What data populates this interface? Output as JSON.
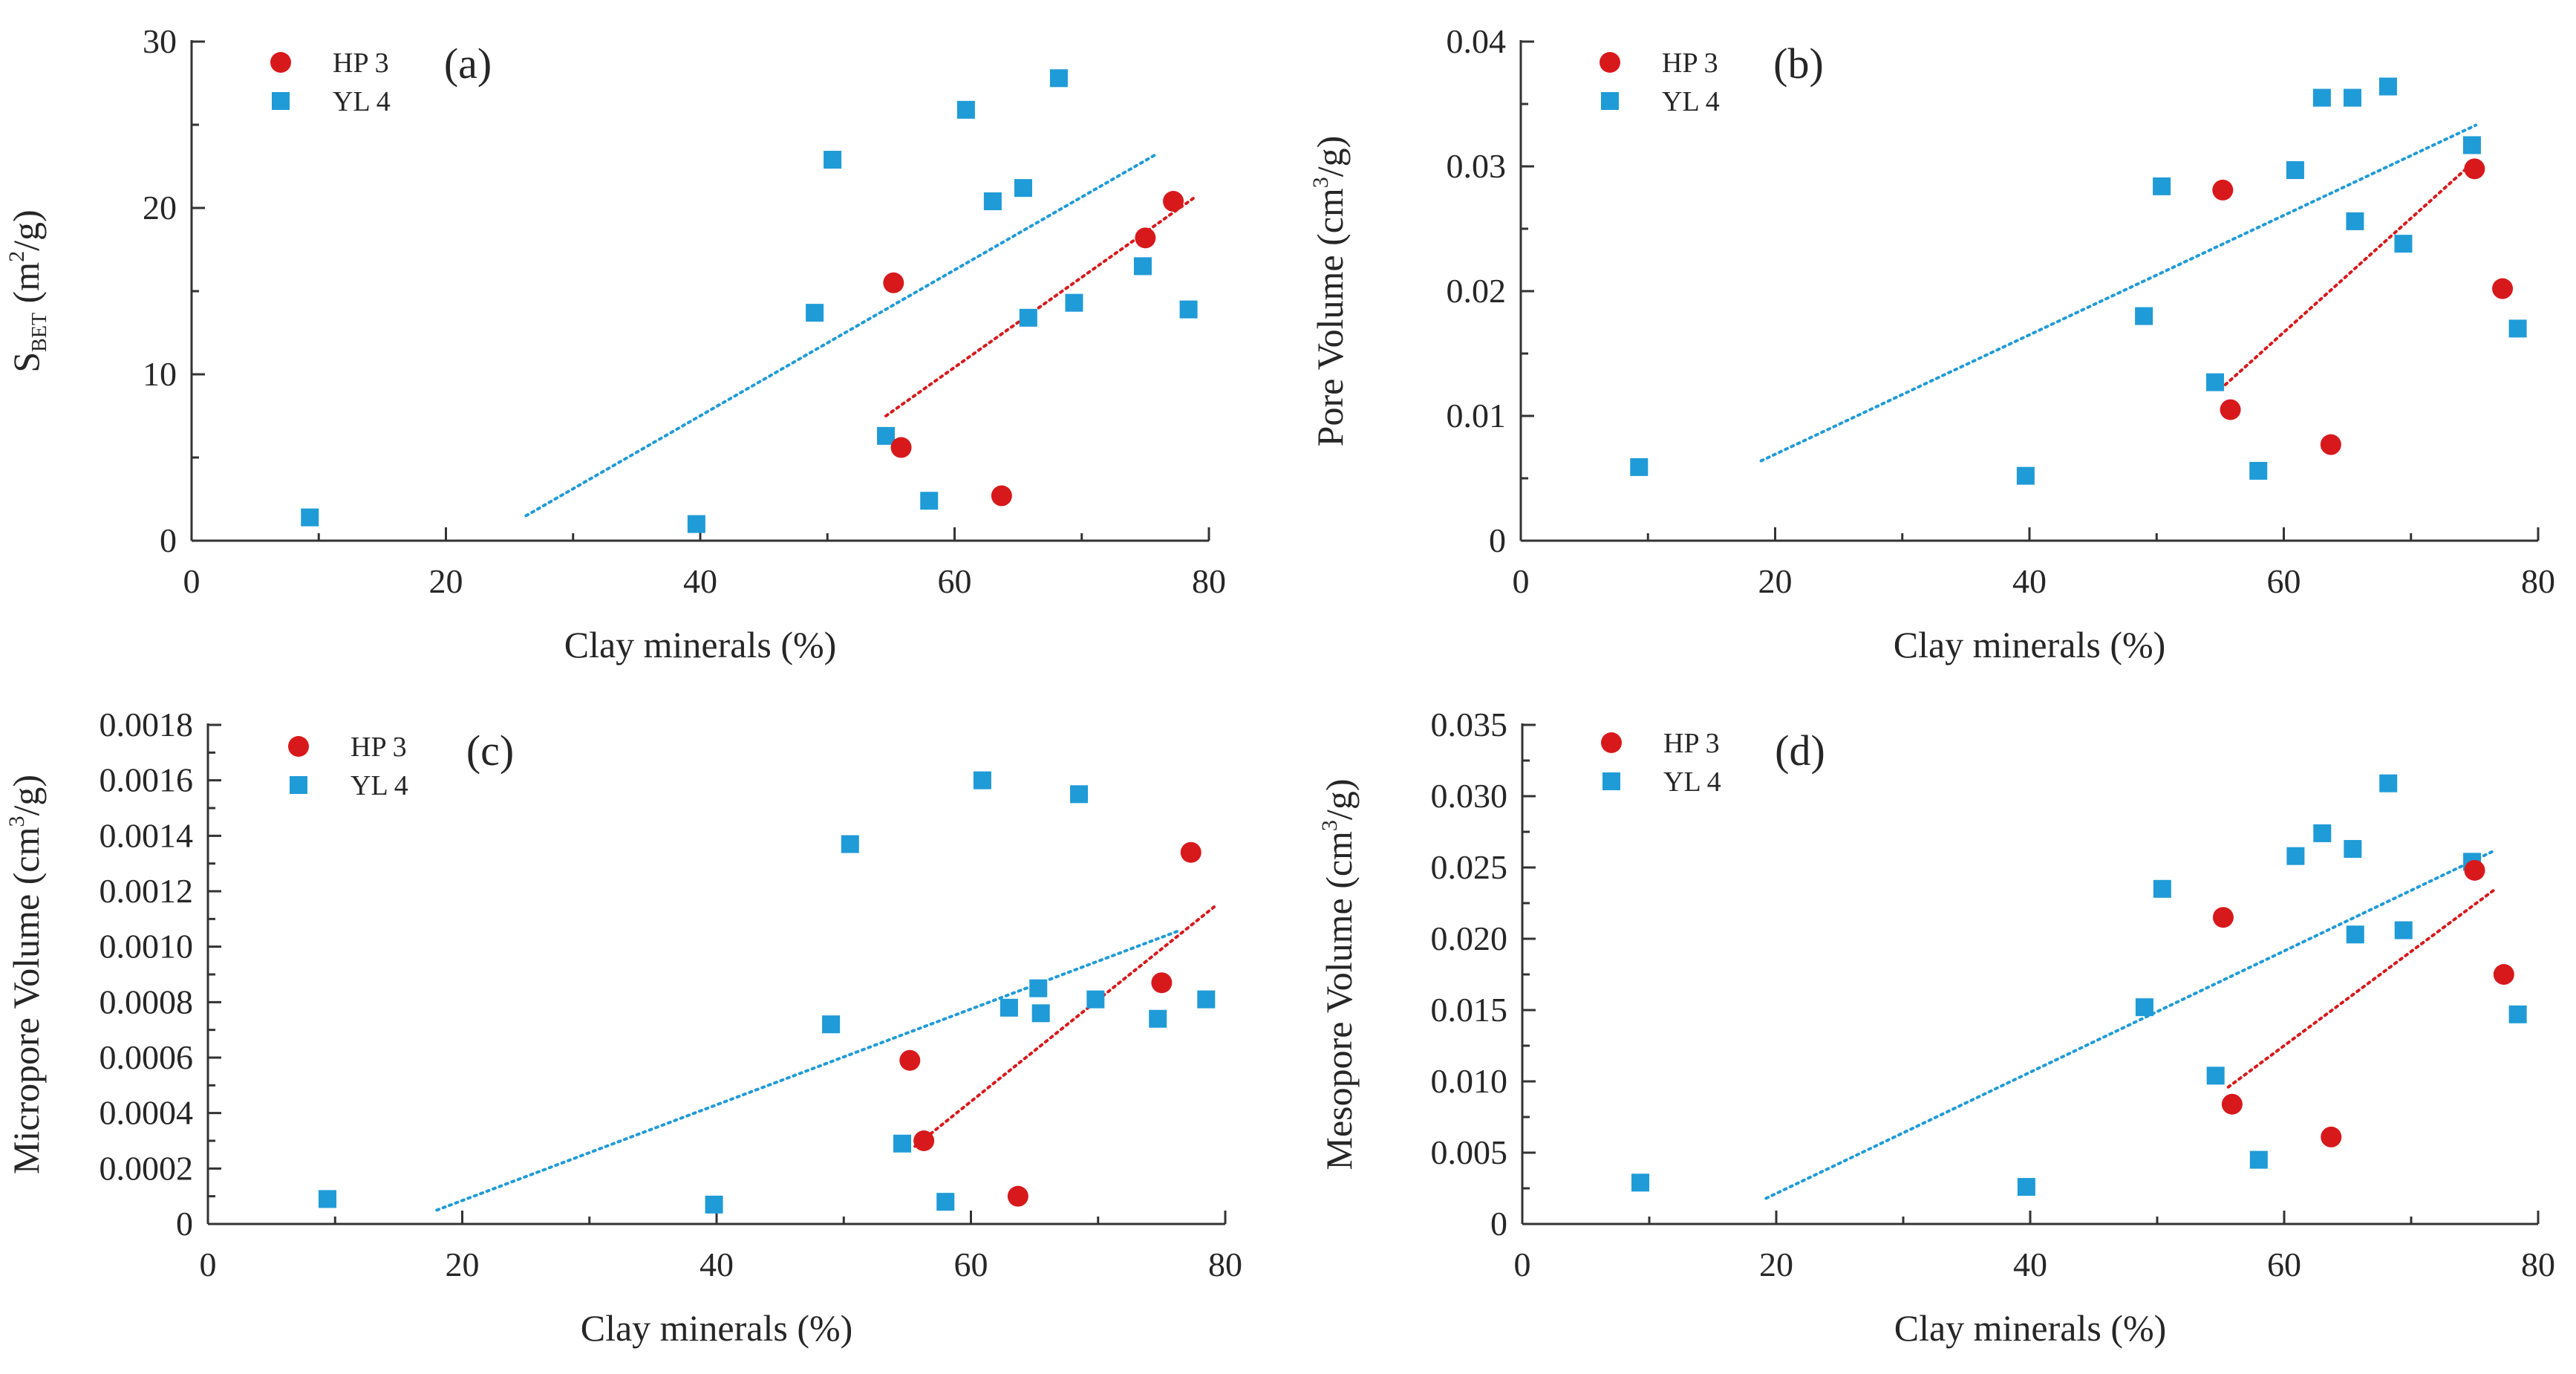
{
  "colors": {
    "axis": "#333333",
    "text": "#262626",
    "hp3": "#d7191c",
    "yl4": "#1f9bd7"
  },
  "chart_data": [
    {
      "type": "scatter",
      "panel_label": "(a)",
      "xlabel": "Clay minerals (%)",
      "ylabel": "S",
      "ylabel_sub": "BET",
      "ylabel_rest": " (m",
      "ylabel_sup": "2",
      "ylabel_end": "/g)",
      "xlim": [
        0,
        80
      ],
      "ylim": [
        0,
        30
      ],
      "x_ticks": [
        0,
        20,
        40,
        60,
        80
      ],
      "x_tick_labels": [
        "0",
        "20",
        "40",
        "60",
        "80"
      ],
      "y_ticks": [
        0,
        10,
        20,
        30
      ],
      "y_tick_labels": [
        "0",
        "10",
        "20",
        "30"
      ],
      "legend": [
        "HP 3",
        "YL 4"
      ],
      "series": [
        {
          "name": "HP 3",
          "marker": "circle",
          "color_key": "hp3",
          "x": [
            55.2,
            55.8,
            63.7,
            75.0,
            77.2
          ],
          "y": [
            15.5,
            5.6,
            2.7,
            18.2,
            20.4
          ],
          "trend": {
            "x1": 54.6,
            "y1": 7.5,
            "x2": 79.0,
            "y2": 20.7
          }
        },
        {
          "name": "YL 4",
          "marker": "square",
          "color_key": "yl4",
          "x": [
            9.3,
            39.7,
            49.0,
            50.4,
            54.6,
            58.0,
            60.9,
            63.0,
            65.4,
            65.8,
            68.2,
            69.4,
            74.8,
            78.4
          ],
          "y": [
            1.4,
            1.0,
            13.7,
            22.9,
            6.3,
            2.4,
            25.9,
            20.4,
            21.2,
            13.4,
            27.8,
            14.3,
            16.5,
            13.9
          ],
          "trend": {
            "x1": 26.3,
            "y1": 1.5,
            "x2": 75.8,
            "y2": 23.2
          }
        }
      ]
    },
    {
      "type": "scatter",
      "panel_label": "(b)",
      "xlabel": "Clay minerals (%)",
      "ylabel": "Pore Volume (cm",
      "ylabel_sup": "3",
      "ylabel_end": "/g)",
      "xlim": [
        0,
        80
      ],
      "ylim": [
        0,
        0.04
      ],
      "x_ticks": [
        0,
        20,
        40,
        60,
        80
      ],
      "x_tick_labels": [
        "0",
        "20",
        "40",
        "60",
        "80"
      ],
      "y_ticks": [
        0,
        0.01,
        0.02,
        0.03,
        0.04
      ],
      "y_tick_labels": [
        "0",
        "0.01",
        "0.02",
        "0.03",
        "0.04"
      ],
      "legend": [
        "HP 3",
        "YL 4"
      ],
      "series": [
        {
          "name": "HP 3",
          "marker": "circle",
          "color_key": "hp3",
          "x": [
            55.2,
            55.8,
            63.7,
            75.0,
            77.2
          ],
          "y": [
            0.0281,
            0.0105,
            0.0077,
            0.0298,
            0.0202
          ],
          "trend": {
            "x1": 55.4,
            "y1": 0.0125,
            "x2": 75.1,
            "y2": 0.0305
          }
        },
        {
          "name": "YL 4",
          "marker": "square",
          "color_key": "yl4",
          "x": [
            9.3,
            39.7,
            49.0,
            50.4,
            54.6,
            58.0,
            60.9,
            63.0,
            65.4,
            65.6,
            68.2,
            69.4,
            74.8,
            78.4
          ],
          "y": [
            0.0059,
            0.0052,
            0.018,
            0.0284,
            0.0127,
            0.0056,
            0.0297,
            0.0355,
            0.0355,
            0.0256,
            0.0364,
            0.0238,
            0.0317,
            0.017
          ],
          "trend": {
            "x1": 18.9,
            "y1": 0.0064,
            "x2": 75.1,
            "y2": 0.0333
          }
        }
      ]
    },
    {
      "type": "scatter",
      "panel_label": "(c)",
      "xlabel": "Clay minerals (%)",
      "ylabel": "Micropore Volume (cm",
      "ylabel_sup": "3",
      "ylabel_end": "/g)",
      "xlim": [
        0,
        80
      ],
      "ylim": [
        0,
        0.0018
      ],
      "x_ticks": [
        0,
        20,
        40,
        60,
        80
      ],
      "x_tick_labels": [
        "0",
        "20",
        "40",
        "60",
        "80"
      ],
      "y_ticks": [
        0,
        0.0002,
        0.0004,
        0.0006,
        0.0008,
        0.001,
        0.0012,
        0.0014,
        0.0016,
        0.0018
      ],
      "y_tick_labels": [
        "0",
        "0.0002",
        "0.0004",
        "0.0006",
        "0.0008",
        "0.0010",
        "0.0012",
        "0.0014",
        "0.0016",
        "0.0018"
      ],
      "legend": [
        "HP 3",
        "YL 4"
      ],
      "series": [
        {
          "name": "HP 3",
          "marker": "circle",
          "color_key": "hp3",
          "x": [
            55.2,
            56.3,
            63.7,
            75.0,
            77.3
          ],
          "y": [
            0.00059,
            0.0003,
            0.0001,
            0.00087,
            0.00134
          ],
          "trend": {
            "x1": 55.6,
            "y1": 0.00028,
            "x2": 79.3,
            "y2": 0.00115
          }
        },
        {
          "name": "YL 4",
          "marker": "square",
          "color_key": "yl4",
          "x": [
            9.4,
            39.8,
            49.0,
            50.5,
            54.6,
            58.0,
            60.9,
            63.0,
            65.3,
            65.5,
            68.5,
            69.8,
            74.7,
            78.5
          ],
          "y": [
            9e-05,
            7e-05,
            0.00072,
            0.00137,
            0.00029,
            8e-05,
            0.0016,
            0.00078,
            0.00085,
            0.00076,
            0.00155,
            0.00081,
            0.00074,
            0.00081
          ],
          "trend": {
            "x1": 18.0,
            "y1": 5e-05,
            "x2": 76.5,
            "y2": 0.00106
          }
        }
      ]
    },
    {
      "type": "scatter",
      "panel_label": "(d)",
      "xlabel": "Clay minerals (%)",
      "ylabel": "Mesopore Volume (cm",
      "ylabel_sup": "3",
      "ylabel_end": "/g)",
      "xlim": [
        0,
        80
      ],
      "ylim": [
        0,
        0.035
      ],
      "x_ticks": [
        0,
        20,
        40,
        60,
        80
      ],
      "x_tick_labels": [
        "0",
        "20",
        "40",
        "60",
        "80"
      ],
      "y_ticks": [
        0,
        0.005,
        0.01,
        0.015,
        0.02,
        0.025,
        0.03,
        0.035
      ],
      "y_tick_labels": [
        "0",
        "0.005",
        "0.010",
        "0.015",
        "0.020",
        "0.025",
        "0.030",
        "0.035"
      ],
      "legend": [
        "HP 3",
        "YL 4"
      ],
      "series": [
        {
          "name": "HP 3",
          "marker": "circle",
          "color_key": "hp3",
          "x": [
            55.2,
            55.9,
            63.7,
            75.0,
            77.3
          ],
          "y": [
            0.0215,
            0.0084,
            0.0061,
            0.0248,
            0.0175
          ],
          "trend": {
            "x1": 55.6,
            "y1": 0.0096,
            "x2": 76.5,
            "y2": 0.0234
          }
        },
        {
          "name": "YL 4",
          "marker": "square",
          "color_key": "yl4",
          "x": [
            9.3,
            39.7,
            49.0,
            50.4,
            54.6,
            58.0,
            60.9,
            63.0,
            65.4,
            65.6,
            68.2,
            69.4,
            74.8,
            78.4
          ],
          "y": [
            0.0029,
            0.0026,
            0.0152,
            0.0235,
            0.0104,
            0.0045,
            0.0258,
            0.0274,
            0.0263,
            0.0203,
            0.0309,
            0.0206,
            0.0254,
            0.0147
          ],
          "trend": {
            "x1": 19.2,
            "y1": 0.0018,
            "x2": 76.6,
            "y2": 0.0262
          }
        }
      ]
    }
  ]
}
